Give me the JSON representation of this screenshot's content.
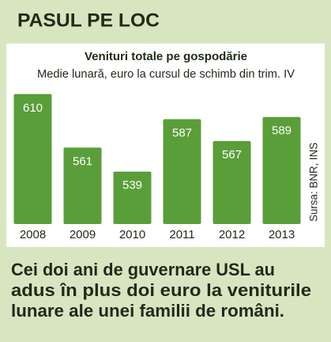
{
  "chart_data": {
    "type": "bar",
    "header": "PASUL PE LOC",
    "title": "Venituri totale pe gospodărie",
    "subtitle": "Medie lunară, euro la cursul de schimb din trim. IV",
    "categories": [
      "2008",
      "2009",
      "2010",
      "2011",
      "2012",
      "2013"
    ],
    "values": [
      610,
      561,
      539,
      587,
      567,
      589
    ],
    "color": "#5a9e3a",
    "ylim": [
      491,
      620
    ],
    "source": "Sursa: BNR, INS",
    "caption": [
      "Cei doi ani de guvernare USL au",
      "adus în plus doi euro la veniturile",
      "lunare ale unei familii de români."
    ]
  }
}
